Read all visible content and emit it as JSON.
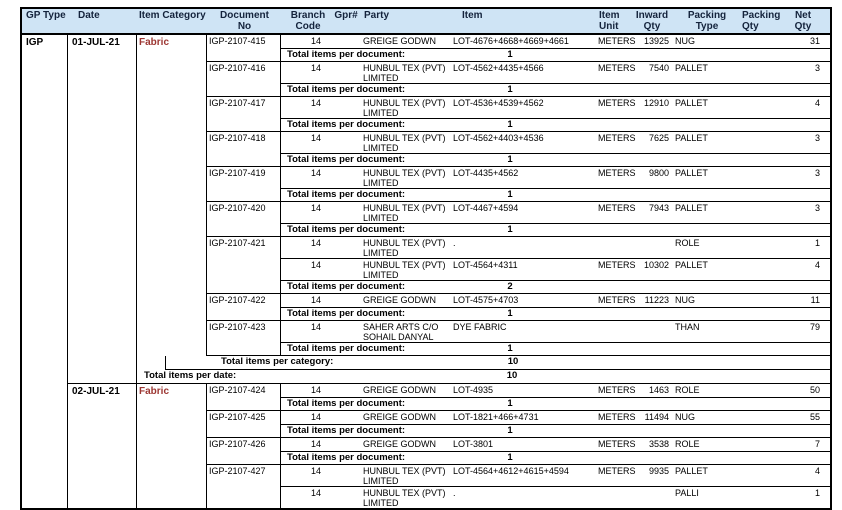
{
  "columns": {
    "gp_type": "GP Type",
    "date": "Date",
    "category": "Item Category",
    "doc1": "Document",
    "doc2": "No",
    "branch1": "Branch",
    "branch2": "Code",
    "gpr": "Gpr#",
    "party": "Party",
    "item": "Item",
    "unit1": "Item",
    "unit2": "Unit",
    "inward1": "Inward",
    "inward2": "Qty",
    "ptype1": "Packing",
    "ptype2": "Type",
    "pqty1": "Packing",
    "pqty2": "Qty",
    "net1": "Net",
    "net2": "Qty"
  },
  "labels": {
    "doc_total": "Total items per document:",
    "cat_total": "Total items per category:",
    "date_total": "Total items per date:"
  },
  "colors": {
    "header_bg": "#cfe4f5",
    "category_text": "#9c3632",
    "border": "#000000"
  },
  "gp_type": "IGP",
  "groups": [
    {
      "date": "01-JUL-21",
      "category": "Fabric",
      "docs": [
        {
          "doc_no": "IGP-2107-415",
          "total": "1",
          "items": [
            {
              "branch": "14",
              "party": "GREIGE GODWN",
              "item": "LOT-4676+4668+4669+4661",
              "unit": "METERS",
              "inward": "13925",
              "ptype": "NUG",
              "pqty": "",
              "net": "31"
            }
          ]
        },
        {
          "doc_no": "IGP-2107-416",
          "total": "1",
          "items": [
            {
              "branch": "14",
              "party": "HUNBUL TEX (PVT) LIMITED",
              "item": "LOT-4562+4435+4566",
              "unit": "METERS",
              "inward": "7540",
              "ptype": "PALLET",
              "pqty": "",
              "net": "3"
            }
          ]
        },
        {
          "doc_no": "IGP-2107-417",
          "total": "1",
          "items": [
            {
              "branch": "14",
              "party": "HUNBUL TEX (PVT) LIMITED",
              "item": "LOT-4536+4539+4562",
              "unit": "METERS",
              "inward": "12910",
              "ptype": "PALLET",
              "pqty": "",
              "net": "4"
            }
          ]
        },
        {
          "doc_no": "IGP-2107-418",
          "total": "1",
          "items": [
            {
              "branch": "14",
              "party": "HUNBUL TEX (PVT) LIMITED",
              "item": "LOT-4562+4403+4536",
              "unit": "METERS",
              "inward": "7625",
              "ptype": "PALLET",
              "pqty": "",
              "net": "3"
            }
          ]
        },
        {
          "doc_no": "IGP-2107-419",
          "total": "1",
          "items": [
            {
              "branch": "14",
              "party": "HUNBUL TEX (PVT) LIMITED",
              "item": "LOT-4435+4562",
              "unit": "METERS",
              "inward": "9800",
              "ptype": "PALLET",
              "pqty": "",
              "net": "3"
            }
          ]
        },
        {
          "doc_no": "IGP-2107-420",
          "total": "1",
          "items": [
            {
              "branch": "14",
              "party": "HUNBUL TEX (PVT) LIMITED",
              "item": "LOT-4467+4594",
              "unit": "METERS",
              "inward": "7943",
              "ptype": "PALLET",
              "pqty": "",
              "net": "3"
            }
          ]
        },
        {
          "doc_no": "IGP-2107-421",
          "total": "2",
          "items": [
            {
              "branch": "14",
              "party": "HUNBUL TEX (PVT) LIMITED",
              "item": ".",
              "unit": "",
              "inward": "",
              "ptype": "ROLE",
              "pqty": "",
              "net": "1"
            },
            {
              "branch": "14",
              "party": "HUNBUL TEX (PVT) LIMITED",
              "item": "LOT-4564+4311",
              "unit": "METERS",
              "inward": "10302",
              "ptype": "PALLET",
              "pqty": "",
              "net": "4"
            }
          ]
        },
        {
          "doc_no": "IGP-2107-422",
          "total": "1",
          "items": [
            {
              "branch": "14",
              "party": "GREIGE GODWN",
              "item": "LOT-4575+4703",
              "unit": "METERS",
              "inward": "11223",
              "ptype": "NUG",
              "pqty": "",
              "net": "11"
            }
          ]
        },
        {
          "doc_no": "IGP-2107-423",
          "total": "1",
          "items": [
            {
              "branch": "14",
              "party": "SAHER ARTS C/O SOHAIL DANYAL",
              "item": "DYE FABRIC",
              "unit": "",
              "inward": "",
              "ptype": "THAN",
              "pqty": "",
              "net": "79"
            }
          ]
        }
      ],
      "category_total": "10",
      "date_total": "10"
    },
    {
      "date": "02-JUL-21",
      "category": "Fabric",
      "docs": [
        {
          "doc_no": "IGP-2107-424",
          "total": "1",
          "items": [
            {
              "branch": "14",
              "party": "GREIGE GODWN",
              "item": "LOT-4935",
              "unit": "METERS",
              "inward": "1463",
              "ptype": "ROLE",
              "pqty": "",
              "net": "50"
            }
          ]
        },
        {
          "doc_no": "IGP-2107-425",
          "total": "1",
          "items": [
            {
              "branch": "14",
              "party": "GREIGE GODWN",
              "item": "LOT-1821+466+4731",
              "unit": "METERS",
              "inward": "11494",
              "ptype": "NUG",
              "pqty": "",
              "net": "55"
            }
          ]
        },
        {
          "doc_no": "IGP-2107-426",
          "total": "1",
          "items": [
            {
              "branch": "14",
              "party": "GREIGE GODWN",
              "item": "LOT-3801",
              "unit": "METERS",
              "inward": "3538",
              "ptype": "ROLE",
              "pqty": "",
              "net": "7"
            }
          ]
        },
        {
          "doc_no": "IGP-2107-427",
          "total": "",
          "items": [
            {
              "branch": "14",
              "party": "HUNBUL TEX (PVT) LIMITED",
              "item": "LOT-4564+4612+4615+4594",
              "unit": "METERS",
              "inward": "9935",
              "ptype": "PALLET",
              "pqty": "",
              "net": "4"
            },
            {
              "branch": "14",
              "party": "HUNBUL TEX (PVT) LIMITED",
              "item": ".",
              "unit": "",
              "inward": "",
              "ptype": "PALLI",
              "pqty": "",
              "net": "1"
            }
          ]
        }
      ]
    }
  ]
}
